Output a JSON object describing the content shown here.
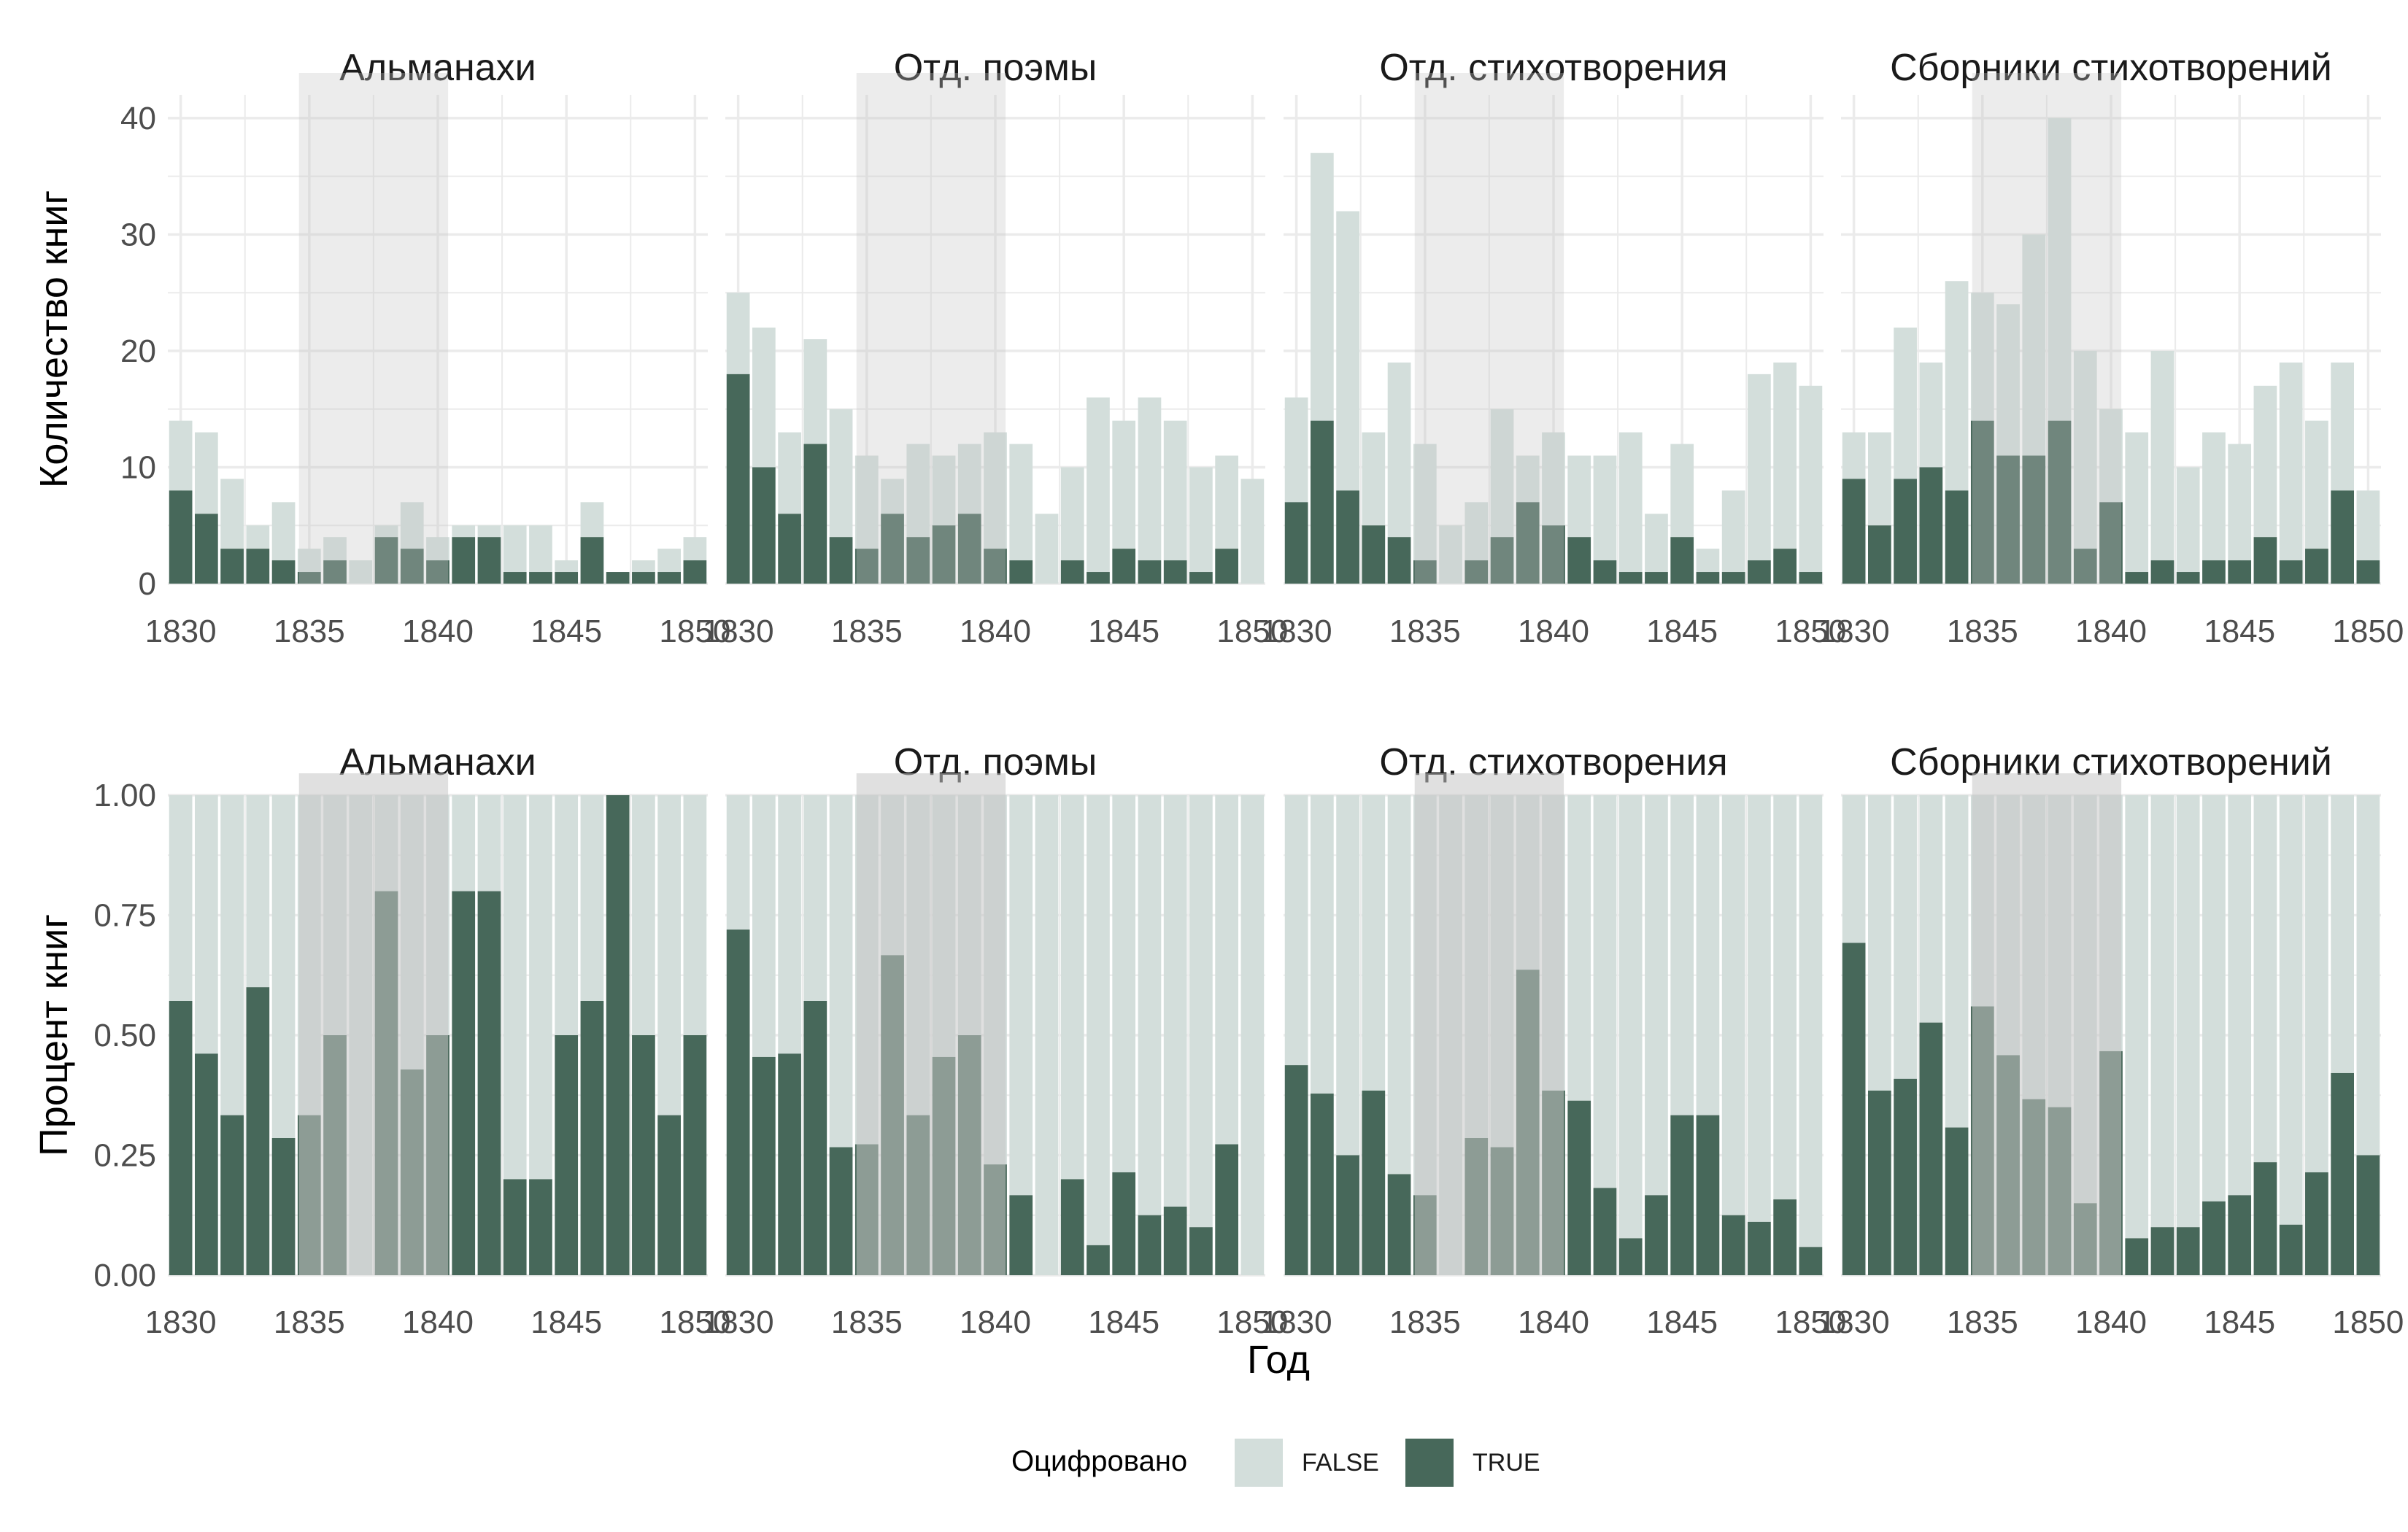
{
  "chart_data": {
    "type": "bar",
    "stacked": true,
    "layout": "faceted 2 rows x 4 panels",
    "xlabel": "Год",
    "x_range": [
      1829.5,
      1850.5
    ],
    "x_ticks": [
      1830,
      1835,
      1840,
      1845,
      1850
    ],
    "highlight_span": [
      1834.6,
      1840.4
    ],
    "grid": true,
    "legend_position": "bottom",
    "legend_title": "Оцифровано",
    "series_order": [
      "FALSE",
      "TRUE"
    ],
    "colors": {
      "FALSE": "#d3dedb",
      "TRUE": "#47685a",
      "highlight": "#c6c6c6",
      "grid": "#ebebeb"
    },
    "years": [
      1830,
      1831,
      1832,
      1833,
      1834,
      1835,
      1836,
      1837,
      1838,
      1839,
      1840,
      1841,
      1842,
      1843,
      1844,
      1845,
      1846,
      1847,
      1848,
      1849,
      1850
    ],
    "panels": [
      "Альманахи",
      "Отд. поэмы",
      "Отд. стихотворения",
      "Сборники стихотворений"
    ],
    "rows": [
      {
        "ylabel": "Количество книг",
        "mode": "count",
        "ylim": [
          0,
          42
        ],
        "y_ticks": [
          0,
          10,
          20,
          30,
          40
        ],
        "y_tick_labels": [
          "0",
          "10",
          "20",
          "30",
          "40"
        ],
        "highlight_opacity": 0.33
      },
      {
        "ylabel": "Процент книг",
        "mode": "proportion",
        "ylim": [
          0,
          1.0
        ],
        "y_ticks": [
          0,
          0.25,
          0.5,
          0.75,
          1.0
        ],
        "y_tick_labels": [
          "0.00",
          "0.25",
          "0.50",
          "0.75",
          "1.00"
        ],
        "highlight_opacity": 0.55
      }
    ],
    "counts": {
      "Альманахи": {
        "total": [
          14,
          13,
          9,
          5,
          7,
          3,
          4,
          2,
          5,
          7,
          4,
          5,
          5,
          5,
          5,
          2,
          7,
          1,
          2,
          3,
          4
        ],
        "true": [
          8,
          6,
          3,
          3,
          2,
          1,
          2,
          0,
          4,
          3,
          2,
          4,
          4,
          1,
          1,
          1,
          4,
          1,
          1,
          1,
          2
        ]
      },
      "Отд. поэмы": {
        "total": [
          25,
          22,
          13,
          21,
          15,
          11,
          9,
          12,
          11,
          12,
          13,
          12,
          6,
          10,
          16,
          14,
          16,
          14,
          10,
          11,
          9
        ],
        "true": [
          18,
          10,
          6,
          12,
          4,
          3,
          6,
          4,
          5,
          6,
          3,
          2,
          0,
          2,
          1,
          3,
          2,
          2,
          1,
          3,
          0
        ]
      },
      "Отд. стихотворения": {
        "total": [
          16,
          37,
          32,
          13,
          19,
          12,
          5,
          7,
          15,
          11,
          13,
          11,
          11,
          13,
          6,
          12,
          3,
          8,
          18,
          19,
          17
        ],
        "true": [
          7,
          14,
          8,
          5,
          4,
          2,
          0,
          2,
          4,
          7,
          5,
          4,
          2,
          1,
          1,
          4,
          1,
          1,
          2,
          3,
          1
        ]
      },
      "Сборники стихотворений": {
        "total": [
          13,
          13,
          22,
          19,
          26,
          25,
          24,
          30,
          40,
          20,
          15,
          13,
          20,
          10,
          13,
          12,
          17,
          19,
          14,
          19,
          8
        ],
        "true": [
          9,
          5,
          9,
          10,
          8,
          14,
          11,
          11,
          14,
          3,
          7,
          1,
          2,
          1,
          2,
          2,
          4,
          2,
          3,
          8,
          2
        ]
      }
    }
  }
}
